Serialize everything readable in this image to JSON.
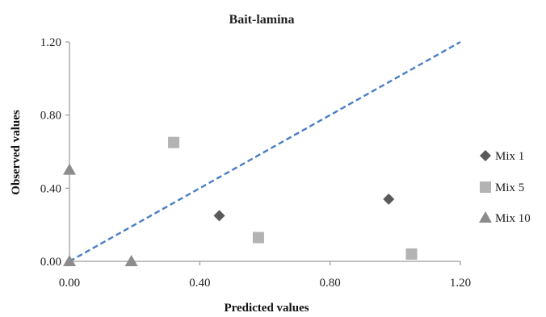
{
  "chart_data": {
    "type": "scatter",
    "title": "Bait-lamina",
    "xlabel": "Predicted values",
    "ylabel": "Observed values",
    "xlim": [
      0,
      1.2
    ],
    "ylim": [
      0,
      1.2
    ],
    "xticks": [
      "0.00",
      "0.40",
      "0.80",
      "1.20"
    ],
    "yticks": [
      "0.00",
      "0.40",
      "0.80",
      "1.20"
    ],
    "grid": false,
    "legend_position": "right",
    "series": [
      {
        "name": "Mix 1",
        "marker": "diamond",
        "color": "#5a5a5a",
        "points": [
          [
            0.46,
            0.25
          ],
          [
            0.98,
            0.34
          ]
        ]
      },
      {
        "name": "Mix 5",
        "marker": "square",
        "color": "#b3b3b3",
        "points": [
          [
            0.32,
            0.65
          ],
          [
            0.58,
            0.13
          ],
          [
            1.05,
            0.04
          ]
        ]
      },
      {
        "name": "Mix 10",
        "marker": "triangle",
        "color": "#8c8c8c",
        "points": [
          [
            0.0,
            0.5
          ],
          [
            0.0,
            0.0
          ],
          [
            0.19,
            0.0
          ]
        ]
      }
    ],
    "reference_line": {
      "x": [
        0,
        1.2
      ],
      "y": [
        0,
        1.2
      ],
      "color": "#4a7ec4",
      "style": "dashed"
    }
  }
}
